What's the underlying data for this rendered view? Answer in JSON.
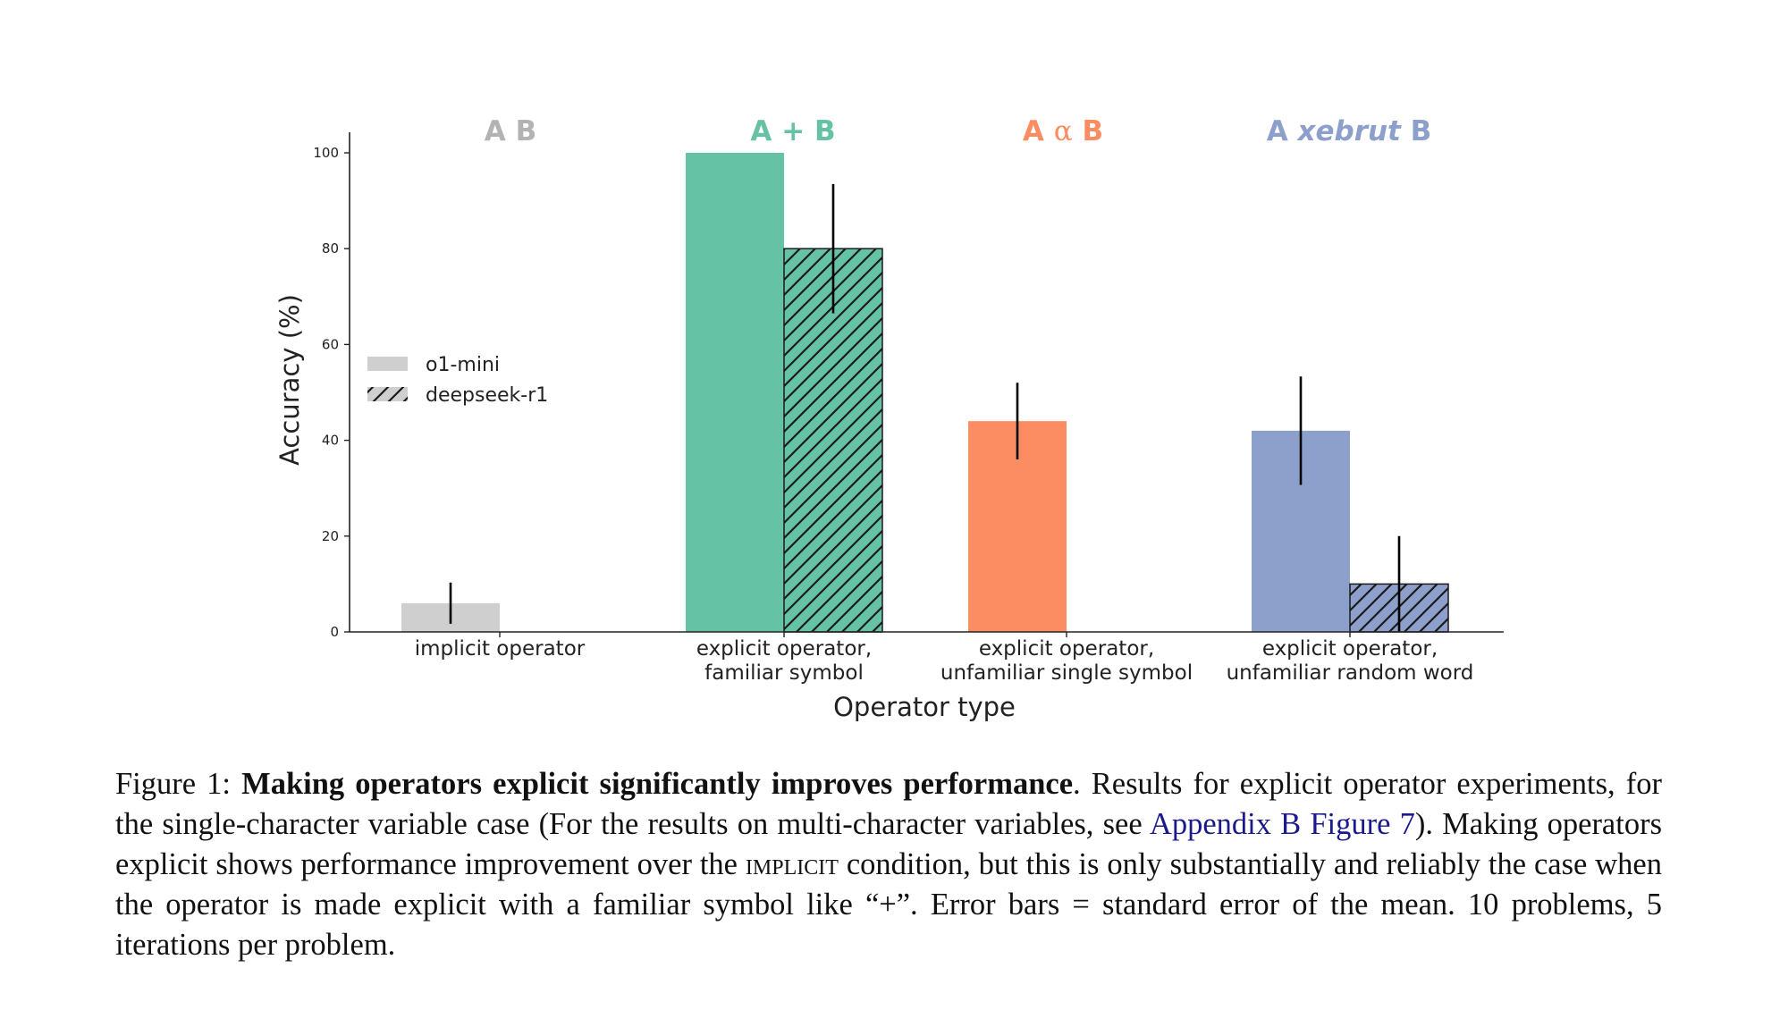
{
  "chart_data": {
    "type": "bar",
    "xlabel": "Operator type",
    "ylabel": "Accuracy (%)",
    "ylim": [
      0,
      104
    ],
    "yticks": [
      0,
      20,
      40,
      60,
      80,
      100
    ],
    "grid": false,
    "legend_position": "center-left",
    "categories": [
      {
        "label_line1": "implicit operator",
        "label_line2": "",
        "header_parts": [
          "A B"
        ],
        "color": "#cfcfcf"
      },
      {
        "label_line1": "explicit operator,",
        "label_line2": "familiar symbol",
        "header_parts": [
          "A + B"
        ],
        "color": "#66c2a5"
      },
      {
        "label_line1": "explicit operator,",
        "label_line2": "unfamiliar single symbol",
        "header_parts": [
          "A ",
          "α",
          " B"
        ],
        "color": "#fc8d62"
      },
      {
        "label_line1": "explicit operator,",
        "label_line2": "unfamiliar random word",
        "header_parts": [
          "A ",
          "xebrut",
          " B"
        ],
        "color": "#8da0cb"
      }
    ],
    "series": [
      {
        "name": "o1-mini",
        "hatch": false,
        "values": [
          6,
          100,
          44,
          42
        ],
        "errors": [
          4.3,
          null,
          8,
          11.3
        ]
      },
      {
        "name": "deepseek-r1",
        "hatch": true,
        "values": [
          0,
          80,
          0,
          10
        ],
        "errors": [
          null,
          13.5,
          null,
          10
        ]
      }
    ]
  },
  "caption": {
    "figure_label": "Figure 1:",
    "bold_text": "Making operators explicit significantly improves performance",
    "text_1": ".  Results for explicit operator experiments, for the single-character variable case (For the results on multi-character variables, see ",
    "link_text": "Appendix B Figure 7",
    "text_2": "). Making operators explicit shows performance improvement over the ",
    "small_caps": "implicit",
    "text_3": " condition, but this is only substantially and reliably the case when the operator is made explicit with a familiar symbol like “+”. Error bars = standard error of the mean. 10 problems, 5 iterations per problem."
  }
}
